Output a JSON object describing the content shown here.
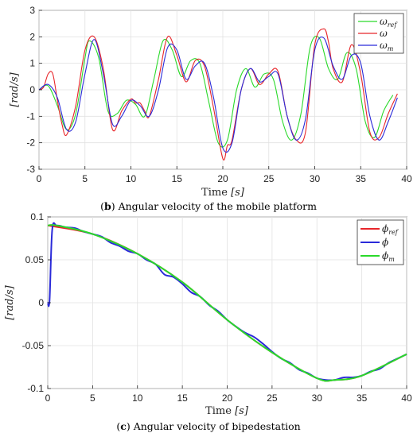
{
  "captions": {
    "b_letter": "b",
    "b_text": "Angular velocity of the mobile platform",
    "c_letter": "c",
    "c_text": "Angular velocity of bipedestation"
  },
  "colors": {
    "red": "#e8262a",
    "green": "#2ad92a",
    "blue": "#2a2ad9"
  },
  "chart_data": [
    {
      "type": "line",
      "xlabel": "Time [s]",
      "ylabel": "[rad/s]",
      "xlim": [
        0,
        40
      ],
      "ylim": [
        -3,
        3
      ],
      "xticks": [
        "0",
        "5",
        "10",
        "15",
        "20",
        "25",
        "30",
        "35",
        "40"
      ],
      "yticks": [
        "3",
        "2",
        "1",
        "0",
        "-1",
        "-2",
        "-3"
      ],
      "grid": true,
      "legend_position": "top-right",
      "series": [
        {
          "name": "ω_ref",
          "color": "#2ad92a",
          "x": [
            0,
            1,
            2,
            3,
            4,
            5,
            5.5,
            6.5,
            7.5,
            8.5,
            9.5,
            10.5,
            11.5,
            12.5,
            13.5,
            14.5,
            15.5,
            16.5,
            17.5,
            18.5,
            19.5,
            20.5,
            21.5,
            22.5,
            23.5,
            24.5,
            25.5,
            26.5,
            27.5,
            28.5,
            29.5,
            30.5,
            31.5,
            32.5,
            33.5,
            34.5,
            35.5,
            36.5,
            37.5,
            38.5
          ],
          "y": [
            0,
            0.15,
            -0.6,
            -1.5,
            -0.9,
            1.2,
            1.85,
            1.2,
            -0.8,
            -0.9,
            -0.4,
            -0.55,
            -1.0,
            0.4,
            1.85,
            1.5,
            0.5,
            1.1,
            1.0,
            -0.5,
            -2.0,
            -1.9,
            0.0,
            0.8,
            0.1,
            0.6,
            0.4,
            -1.2,
            -1.9,
            -0.9,
            1.6,
            1.95,
            0.8,
            0.4,
            1.4,
            0.8,
            -1.2,
            -1.8,
            -0.8,
            -0.2
          ]
        },
        {
          "name": "ω",
          "color": "#e8262a",
          "x": [
            0,
            0.5,
            1,
            1.5,
            2,
            2.5,
            3,
            4,
            5,
            6,
            7,
            8,
            9,
            10,
            10.5,
            11,
            11.5,
            12,
            13,
            14,
            15,
            16,
            17,
            18,
            19,
            20,
            20.5,
            21,
            22,
            23,
            24,
            25,
            26,
            27,
            28,
            29,
            30,
            31,
            31.5,
            32,
            33,
            34,
            35,
            36,
            37,
            38,
            39
          ],
          "y": [
            0,
            0.1,
            0.6,
            0.6,
            -0.4,
            -1.3,
            -1.7,
            -0.6,
            1.5,
            2.0,
            0.8,
            -1.5,
            -0.8,
            -0.35,
            -0.5,
            -0.5,
            -0.8,
            -1.0,
            0.4,
            2.0,
            1.3,
            0.3,
            1.1,
            0.9,
            -0.7,
            -2.6,
            -2.1,
            -1.9,
            0.0,
            0.8,
            0.2,
            0.6,
            0.7,
            -1.0,
            -1.9,
            -1.6,
            1.7,
            2.3,
            1.8,
            0.8,
            0.3,
            1.7,
            0.6,
            -1.6,
            -1.8,
            -0.9,
            -0.15
          ]
        },
        {
          "name": "ω_m",
          "color": "#2a2ad9",
          "x": [
            0,
            1,
            2,
            3,
            4,
            5,
            6,
            7,
            8,
            9,
            10,
            11,
            12,
            13,
            14,
            15,
            16,
            17,
            18,
            19,
            20,
            21,
            22,
            23,
            24,
            25,
            26,
            27,
            28,
            29,
            30,
            31,
            32,
            33,
            34,
            35,
            36,
            37,
            38,
            39
          ],
          "y": [
            0,
            0.2,
            -0.3,
            -1.5,
            -1.2,
            0.6,
            1.9,
            0.6,
            -1.3,
            -1.0,
            -0.4,
            -0.6,
            -1.0,
            0.0,
            1.6,
            1.5,
            0.4,
            0.9,
            1.0,
            -0.3,
            -2.2,
            -2.0,
            0.0,
            0.8,
            0.3,
            0.5,
            0.6,
            -1.0,
            -1.9,
            -1.1,
            1.5,
            1.95,
            0.9,
            0.4,
            1.3,
            1.0,
            -1.0,
            -1.9,
            -1.2,
            -0.3
          ]
        }
      ]
    },
    {
      "type": "line",
      "xlabel": "Time [s]",
      "ylabel": "[rad/s]",
      "xlim": [
        0,
        40
      ],
      "ylim": [
        -0.1,
        0.1
      ],
      "xticks": [
        "0",
        "5",
        "10",
        "15",
        "20",
        "25",
        "30",
        "35",
        "40"
      ],
      "yticks": [
        "0.1",
        "0.05",
        "0",
        "-0.05",
        "-0.1"
      ],
      "grid": true,
      "legend_position": "top-right",
      "series": [
        {
          "name": "φ_ref",
          "color": "#e8262a",
          "x": [
            0,
            5,
            10,
            15,
            20,
            25,
            30,
            32,
            35,
            40
          ],
          "y": [
            0.09,
            0.08,
            0.057,
            0.024,
            -0.02,
            -0.058,
            -0.088,
            -0.09,
            -0.085,
            -0.06
          ]
        },
        {
          "name": "φ",
          "color": "#2a2ad9",
          "x": [
            0,
            0.2,
            0.5,
            1,
            2,
            3,
            4,
            5,
            6,
            7,
            8,
            9,
            10,
            11,
            12,
            13,
            14,
            15,
            16,
            17,
            18,
            19,
            20,
            21,
            22,
            23,
            24,
            25,
            26,
            27,
            28,
            29,
            30,
            31,
            32,
            33,
            34,
            35,
            36,
            37,
            38,
            39,
            40
          ],
          "y": [
            0,
            0.003,
            0.085,
            0.09,
            0.088,
            0.087,
            0.083,
            0.08,
            0.077,
            0.07,
            0.066,
            0.06,
            0.057,
            0.05,
            0.045,
            0.033,
            0.03,
            0.022,
            0.012,
            0.007,
            -0.003,
            -0.01,
            -0.02,
            -0.028,
            -0.035,
            -0.04,
            -0.048,
            -0.057,
            -0.065,
            -0.07,
            -0.078,
            -0.082,
            -0.088,
            -0.09,
            -0.09,
            -0.087,
            -0.087,
            -0.085,
            -0.08,
            -0.077,
            -0.07,
            -0.065,
            -0.06
          ]
        },
        {
          "name": "φ_m",
          "color": "#2ad92a",
          "x": [
            0,
            1,
            5,
            10,
            15,
            20,
            25,
            30,
            32,
            35,
            40
          ],
          "y": [
            0.09,
            0.09,
            0.08,
            0.057,
            0.024,
            -0.02,
            -0.058,
            -0.088,
            -0.09,
            -0.085,
            -0.06
          ]
        }
      ]
    }
  ]
}
